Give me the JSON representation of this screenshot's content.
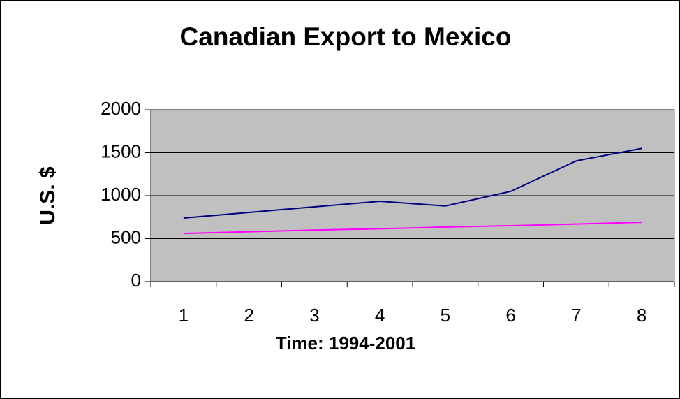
{
  "chart_data": {
    "type": "line",
    "title": "Canadian Export to Mexico",
    "xlabel": "Time: 1994-2001",
    "ylabel": "U.S. $",
    "categories": [
      "1",
      "2",
      "3",
      "4",
      "5",
      "6",
      "7",
      "8"
    ],
    "series": [
      {
        "color": "#000080",
        "values": [
          740,
          805,
          870,
          935,
          880,
          1050,
          1405,
          1550
        ]
      },
      {
        "color": "#ff00ff",
        "values": [
          560,
          580,
          600,
          615,
          635,
          650,
          670,
          690
        ]
      }
    ],
    "ylim": [
      0,
      2000
    ],
    "yticks": [
      0,
      500,
      1000,
      1500,
      2000
    ],
    "grid": true
  }
}
